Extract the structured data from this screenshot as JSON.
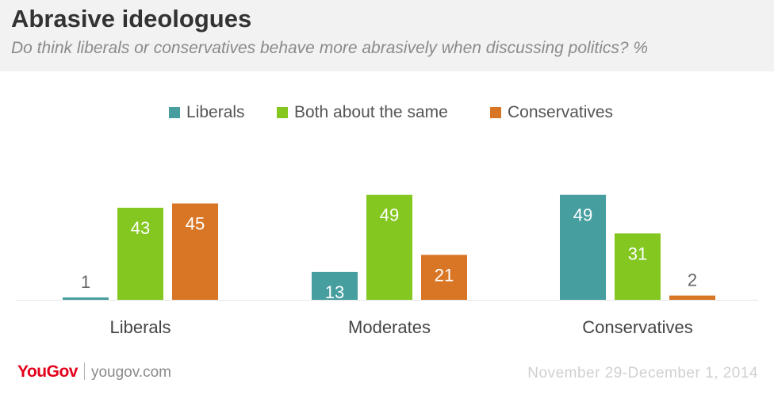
{
  "header": {
    "title": "Abrasive ideologues",
    "subtitle": "Do think liberals or conservatives behave more abrasively when discussing politics? %"
  },
  "legend": {
    "items": [
      {
        "label": "Liberals",
        "color": "#469e9f"
      },
      {
        "label": "Both about the same",
        "color": "#84c720"
      },
      {
        "label": "Conservatives",
        "color": "#d97625"
      }
    ]
  },
  "chart_data": {
    "type": "bar",
    "categories": [
      "Liberals",
      "Moderates",
      "Conservatives"
    ],
    "series": [
      {
        "name": "Liberals",
        "color": "#469e9f",
        "values": [
          1,
          13,
          49
        ]
      },
      {
        "name": "Both about the same",
        "color": "#84c720",
        "values": [
          43,
          49,
          31
        ]
      },
      {
        "name": "Conservatives",
        "color": "#d97625",
        "values": [
          45,
          21,
          2
        ]
      }
    ],
    "ylim": [
      0,
      49
    ],
    "grid": false,
    "legend_position": "top-center"
  },
  "footer": {
    "logo": "YouGov",
    "url": "yougov.com",
    "date": "November 29-December 1, 2014"
  }
}
